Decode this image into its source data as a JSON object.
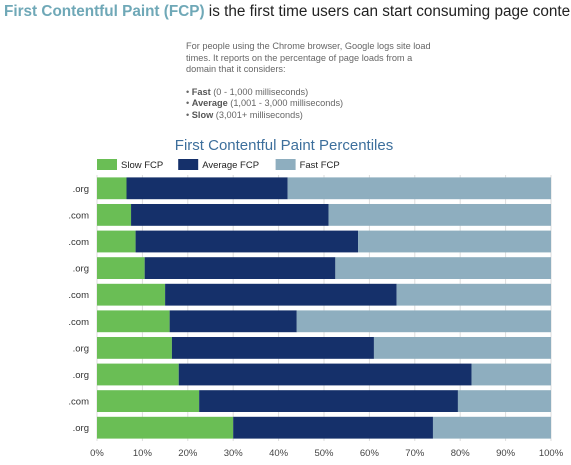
{
  "header": {
    "accent_text": "First Contentful Paint (FCP)",
    "rest_text": " is the first time users can start consuming page content."
  },
  "intro": {
    "paragraph": "For people using the Chrome browser, Google logs site load times. It reports on the percentage of page loads from a domain that it considers:",
    "bullets": [
      {
        "marker": "•",
        "label": "Fast",
        "detail": " (0 - 1,000 milliseconds)"
      },
      {
        "marker": "•",
        "label": "Average",
        "detail": " (1,001 - 3,000 milliseconds)"
      },
      {
        "marker": "•",
        "label": "Slow",
        "detail": " (3,001+ milliseconds)"
      }
    ]
  },
  "colors": {
    "accent": "#6fa8b7",
    "slow": "#6abe55",
    "average": "#15306a",
    "fast": "#8eaebf",
    "title": "#3d6f9c"
  },
  "chart_data": {
    "type": "bar",
    "orientation": "horizontal",
    "stacked": true,
    "title": "First Contentful Paint Percentiles",
    "legend_position": "top-left",
    "grid": true,
    "xlim": [
      0,
      100
    ],
    "x_ticks": [
      "0%",
      "10%",
      "20%",
      "30%",
      "40%",
      "50%",
      "60%",
      "70%",
      "80%",
      "90%",
      "100%"
    ],
    "categories": [
      ".org",
      ".com",
      ".com",
      ".org",
      ".com",
      ".com",
      ".org",
      ".org",
      ".com",
      ".org"
    ],
    "series": [
      {
        "name": "Slow FCP",
        "color": "#6abe55",
        "values": [
          6.5,
          7.5,
          8.5,
          10.5,
          15,
          16,
          16.5,
          18,
          22.5,
          30
        ]
      },
      {
        "name": "Average FCP",
        "color": "#15306a",
        "values": [
          35.5,
          43.5,
          49,
          42,
          51,
          28,
          44.5,
          64.5,
          57,
          44
        ]
      },
      {
        "name": "Fast FCP",
        "color": "#8eaebf",
        "values": [
          58,
          49,
          42.5,
          47.5,
          34,
          56,
          39,
          17.5,
          20.5,
          26
        ]
      }
    ]
  }
}
